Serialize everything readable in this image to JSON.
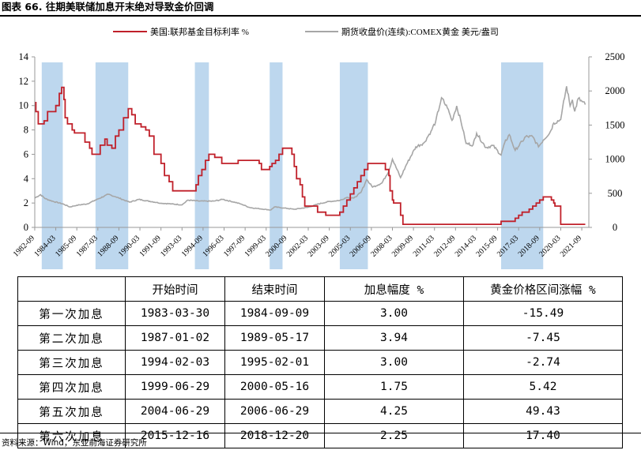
{
  "figure_title": "图表 66. 往期美联储加息开末绝对导致金价回调",
  "source_note": "资料来源：Wind，东亚前海证券研究所",
  "chart_data": {
    "type": "line",
    "legend": [
      "美国:联邦基金目标利率 %",
      "期货收盘价(连续):COMEX黄金 美元/盎司"
    ],
    "left_axis": {
      "range": [
        0,
        14
      ],
      "ticks": [
        "0",
        "2",
        "4",
        "6",
        "8",
        "10",
        "12",
        "14"
      ]
    },
    "right_axis": {
      "range": [
        0,
        2500
      ],
      "ticks": [
        "0",
        "500",
        "1000",
        "1500",
        "2000",
        "2500"
      ]
    },
    "x_ticks": [
      "1982-09",
      "1984-03",
      "1985-09",
      "1987-03",
      "1988-09",
      "1990-03",
      "1991-09",
      "1993-03",
      "1994-09",
      "1996-03",
      "1997-09",
      "1999-03",
      "2000-09",
      "2002-03",
      "2003-09",
      "2005-03",
      "2006-09",
      "2008-03",
      "2009-09",
      "2011-03",
      "2012-09",
      "2014-03",
      "2015-09",
      "2017-03",
      "2018-09",
      "2020-03",
      "2021-09"
    ],
    "shaded_periods": [
      [
        "1983-03",
        "1984-09"
      ],
      [
        "1987-01",
        "1989-05"
      ],
      [
        "1994-02",
        "1995-02"
      ],
      [
        "1999-06",
        "2000-05"
      ],
      [
        "2004-06",
        "2006-06"
      ],
      [
        "2015-12",
        "2018-12"
      ]
    ],
    "colors": {
      "rate": "#c0202a",
      "gold": "#a6a6a6",
      "shade": "#bdd7ee"
    },
    "series": [
      {
        "name": "美国:联邦基金目标利率 %",
        "axis": "left",
        "points": [
          [
            "1982-09",
            10.25
          ],
          [
            "1982-10",
            9.5
          ],
          [
            "1982-12",
            8.5
          ],
          [
            "1983-03",
            8.5
          ],
          [
            "1983-05",
            8.75
          ],
          [
            "1983-08",
            9.5
          ],
          [
            "1984-01",
            9.5
          ],
          [
            "1984-03",
            10.0
          ],
          [
            "1984-06",
            11.0
          ],
          [
            "1984-08",
            11.5
          ],
          [
            "1984-10",
            10.5
          ],
          [
            "1984-11",
            9.0
          ],
          [
            "1985-01",
            8.5
          ],
          [
            "1985-05",
            8.0
          ],
          [
            "1985-07",
            7.75
          ],
          [
            "1986-01",
            7.75
          ],
          [
            "1986-04",
            7.0
          ],
          [
            "1986-08",
            6.5
          ],
          [
            "1986-10",
            6.0
          ],
          [
            "1987-01",
            6.0
          ],
          [
            "1987-05",
            6.75
          ],
          [
            "1987-09",
            7.25
          ],
          [
            "1987-11",
            6.75
          ],
          [
            "1988-03",
            6.5
          ],
          [
            "1988-06",
            7.5
          ],
          [
            "1988-09",
            8.0
          ],
          [
            "1989-01",
            9.0
          ],
          [
            "1989-05",
            9.75
          ],
          [
            "1989-08",
            9.25
          ],
          [
            "1989-11",
            8.5
          ],
          [
            "1990-04",
            8.25
          ],
          [
            "1990-08",
            8.0
          ],
          [
            "1990-11",
            7.5
          ],
          [
            "1991-03",
            6.0
          ],
          [
            "1991-09",
            5.25
          ],
          [
            "1991-12",
            4.25
          ],
          [
            "1992-04",
            3.75
          ],
          [
            "1992-07",
            3.0
          ],
          [
            "1994-02",
            3.0
          ],
          [
            "1994-03",
            3.5
          ],
          [
            "1994-05",
            4.25
          ],
          [
            "1994-08",
            4.75
          ],
          [
            "1994-11",
            5.5
          ],
          [
            "1995-02",
            6.0
          ],
          [
            "1995-07",
            5.75
          ],
          [
            "1996-01",
            5.25
          ],
          [
            "1997-03",
            5.5
          ],
          [
            "1998-09",
            5.25
          ],
          [
            "1998-11",
            4.75
          ],
          [
            "1999-06",
            5.0
          ],
          [
            "1999-08",
            5.25
          ],
          [
            "1999-11",
            5.5
          ],
          [
            "2000-02",
            6.0
          ],
          [
            "2000-05",
            6.5
          ],
          [
            "2001-01",
            6.0
          ],
          [
            "2001-03",
            5.0
          ],
          [
            "2001-05",
            4.0
          ],
          [
            "2001-08",
            3.5
          ],
          [
            "2001-10",
            2.5
          ],
          [
            "2001-12",
            1.75
          ],
          [
            "2002-11",
            1.25
          ],
          [
            "2003-06",
            1.0
          ],
          [
            "2004-06",
            1.25
          ],
          [
            "2004-09",
            1.75
          ],
          [
            "2004-12",
            2.25
          ],
          [
            "2005-03",
            2.75
          ],
          [
            "2005-06",
            3.25
          ],
          [
            "2005-09",
            3.75
          ],
          [
            "2005-12",
            4.25
          ],
          [
            "2006-03",
            4.75
          ],
          [
            "2006-06",
            5.25
          ],
          [
            "2007-09",
            4.75
          ],
          [
            "2007-12",
            4.25
          ],
          [
            "2008-01",
            3.0
          ],
          [
            "2008-03",
            2.25
          ],
          [
            "2008-04",
            2.0
          ],
          [
            "2008-10",
            1.0
          ],
          [
            "2008-12",
            0.25
          ],
          [
            "2015-12",
            0.5
          ],
          [
            "2016-12",
            0.75
          ],
          [
            "2017-03",
            1.0
          ],
          [
            "2017-06",
            1.25
          ],
          [
            "2017-12",
            1.5
          ],
          [
            "2018-03",
            1.75
          ],
          [
            "2018-06",
            2.0
          ],
          [
            "2018-09",
            2.25
          ],
          [
            "2018-12",
            2.5
          ],
          [
            "2019-07",
            2.25
          ],
          [
            "2019-09",
            2.0
          ],
          [
            "2019-10",
            1.75
          ],
          [
            "2020-03",
            0.25
          ],
          [
            "2021-12",
            0.25
          ]
        ]
      },
      {
        "name": "期货收盘价(连续):COMEX黄金 美元/盎司",
        "axis": "right",
        "points": [
          [
            "1982-09",
            430
          ],
          [
            "1983-02",
            480
          ],
          [
            "1983-06",
            420
          ],
          [
            "1984-01",
            380
          ],
          [
            "1984-09",
            345
          ],
          [
            "1985-03",
            300
          ],
          [
            "1985-09",
            325
          ],
          [
            "1986-06",
            345
          ],
          [
            "1987-01",
            400
          ],
          [
            "1987-12",
            485
          ],
          [
            "1988-06",
            450
          ],
          [
            "1988-12",
            410
          ],
          [
            "1989-06",
            370
          ],
          [
            "1990-02",
            410
          ],
          [
            "1990-09",
            390
          ],
          [
            "1991-09",
            355
          ],
          [
            "1992-06",
            345
          ],
          [
            "1993-03",
            330
          ],
          [
            "1993-08",
            400
          ],
          [
            "1994-06",
            385
          ],
          [
            "1995-06",
            385
          ],
          [
            "1996-02",
            410
          ],
          [
            "1996-12",
            370
          ],
          [
            "1997-06",
            340
          ],
          [
            "1998-01",
            290
          ],
          [
            "1999-07",
            255
          ],
          [
            "1999-10",
            300
          ],
          [
            "2000-06",
            285
          ],
          [
            "2001-03",
            265
          ],
          [
            "2002-03",
            295
          ],
          [
            "2002-12",
            345
          ],
          [
            "2003-09",
            380
          ],
          [
            "2004-06",
            395
          ],
          [
            "2004-12",
            440
          ],
          [
            "2005-06",
            430
          ],
          [
            "2005-12",
            510
          ],
          [
            "2006-05",
            700
          ],
          [
            "2006-10",
            590
          ],
          [
            "2007-06",
            650
          ],
          [
            "2007-12",
            830
          ],
          [
            "2008-03",
            1000
          ],
          [
            "2008-10",
            730
          ],
          [
            "2009-03",
            920
          ],
          [
            "2009-11",
            1180
          ],
          [
            "2010-06",
            1240
          ],
          [
            "2010-12",
            1410
          ],
          [
            "2011-04",
            1550
          ],
          [
            "2011-09",
            1900
          ],
          [
            "2012-02",
            1750
          ],
          [
            "2012-06",
            1570
          ],
          [
            "2012-10",
            1780
          ],
          [
            "2013-04",
            1400
          ],
          [
            "2013-06",
            1230
          ],
          [
            "2013-12",
            1210
          ],
          [
            "2014-03",
            1380
          ],
          [
            "2014-11",
            1170
          ],
          [
            "2015-05",
            1200
          ],
          [
            "2015-12",
            1060
          ],
          [
            "2016-03",
            1240
          ],
          [
            "2016-07",
            1360
          ],
          [
            "2016-12",
            1130
          ],
          [
            "2017-06",
            1260
          ],
          [
            "2017-09",
            1330
          ],
          [
            "2018-03",
            1330
          ],
          [
            "2018-08",
            1180
          ],
          [
            "2018-12",
            1280
          ],
          [
            "2019-06",
            1400
          ],
          [
            "2019-09",
            1530
          ],
          [
            "2020-03",
            1580
          ],
          [
            "2020-08",
            2070
          ],
          [
            "2020-11",
            1780
          ],
          [
            "2021-01",
            1870
          ],
          [
            "2021-03",
            1700
          ],
          [
            "2021-06",
            1890
          ],
          [
            "2021-12",
            1800
          ]
        ]
      }
    ]
  },
  "table": {
    "headers": [
      "",
      "开始时间",
      "结束时间",
      "加息幅度 %",
      "黄金价格区间涨幅 %"
    ],
    "rows": [
      [
        "第一次加息",
        "1983-03-30",
        "1984-09-09",
        "3.00",
        "-15.49"
      ],
      [
        "第二次加息",
        "1987-01-02",
        "1989-05-17",
        "3.94",
        "-7.45"
      ],
      [
        "第三次加息",
        "1994-02-03",
        "1995-02-01",
        "3.00",
        "-2.74"
      ],
      [
        "第四次加息",
        "1999-06-29",
        "2000-05-16",
        "1.75",
        "5.42"
      ],
      [
        "第五次加息",
        "2004-06-29",
        "2006-06-29",
        "4.25",
        "49.43"
      ],
      [
        "第六次加息",
        "2015-12-16",
        "2018-12-20",
        "2.25",
        "17.40"
      ]
    ]
  }
}
